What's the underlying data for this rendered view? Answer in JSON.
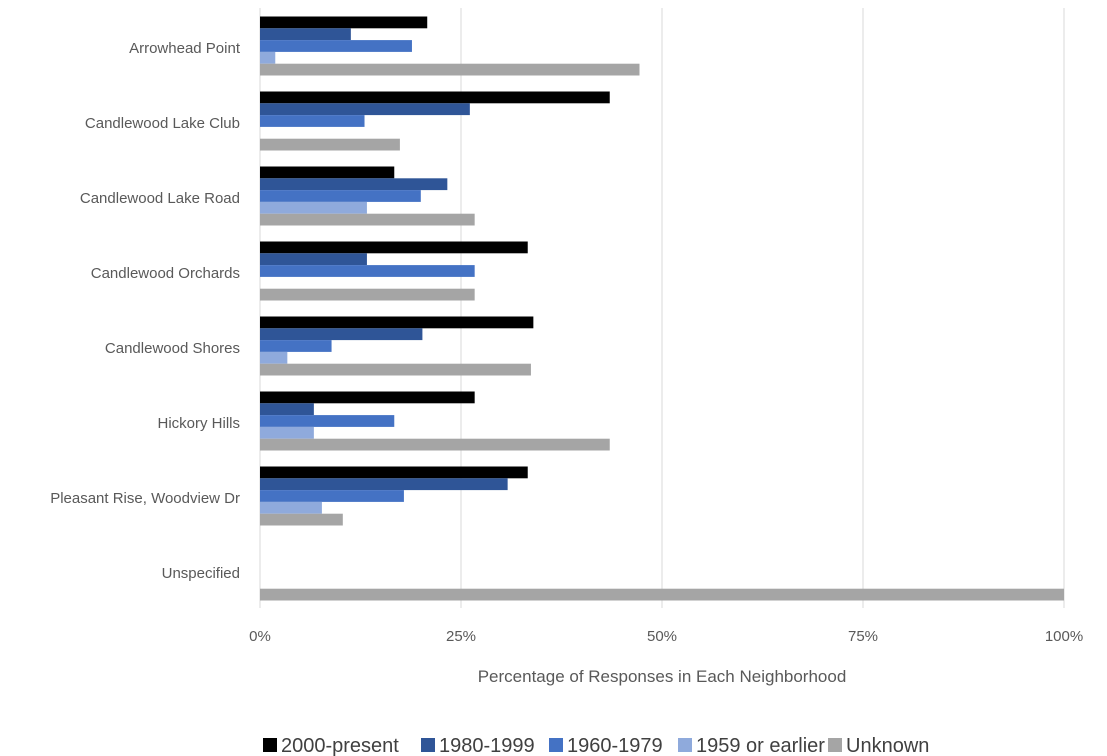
{
  "chart_data": {
    "type": "bar",
    "orientation": "horizontal",
    "title": "",
    "xlabel": "Percentage of Responses in Each Neighborhood",
    "ylabel": "",
    "xlim": [
      0,
      100
    ],
    "x_ticks": [
      0,
      25,
      50,
      75,
      100
    ],
    "x_tick_labels": [
      "0%",
      "25%",
      "50%",
      "75%",
      "100%"
    ],
    "grid": true,
    "legend_position": "bottom",
    "categories": [
      "Arrowhead Point",
      "Candlewood Lake Club",
      "Candlewood Lake Road",
      "Candlewood Orchards",
      "Candlewood Shores",
      "Hickory Hills",
      "Pleasant Rise, Woodview Dr",
      "Unspecified"
    ],
    "series": [
      {
        "name": "2000-present",
        "color": "#000000",
        "values": [
          20.8,
          43.5,
          16.7,
          33.3,
          34.0,
          26.7,
          33.3,
          0
        ]
      },
      {
        "name": "1980-1999",
        "color": "#2f5597",
        "values": [
          11.3,
          26.1,
          23.3,
          13.3,
          20.2,
          6.7,
          30.8,
          0
        ]
      },
      {
        "name": "1960-1979",
        "color": "#4472c4",
        "values": [
          18.9,
          13.0,
          20.0,
          26.7,
          8.9,
          16.7,
          17.9,
          0
        ]
      },
      {
        "name": "1959 or earlier",
        "color": "#8faadc",
        "values": [
          1.9,
          0,
          13.3,
          0,
          3.4,
          6.7,
          7.7,
          0
        ]
      },
      {
        "name": "Unknown",
        "color": "#a5a5a5",
        "values": [
          47.2,
          17.4,
          26.7,
          26.7,
          33.7,
          43.5,
          10.3,
          100
        ]
      }
    ]
  }
}
